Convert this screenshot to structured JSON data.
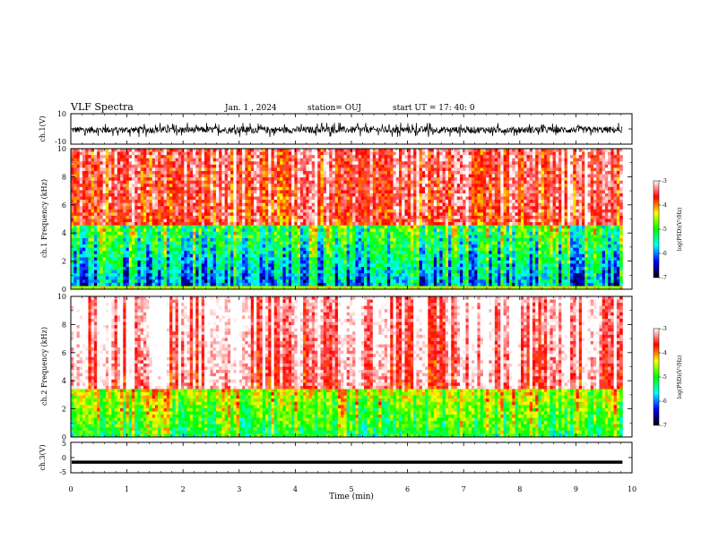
{
  "header": {
    "title": "VLF Spectra",
    "date": "Jan. 1 , 2024",
    "station": "station= OUJ",
    "start": "start  UT =   17: 40: 0"
  },
  "chart_data": [
    {
      "type": "line",
      "panel": "ch1-waveform",
      "ylabel": "ch.1(V)",
      "ylim": [
        -10,
        10
      ],
      "yticks": [
        "10",
        "-10"
      ],
      "xlim": [
        0,
        10
      ],
      "trace_range_approx": [
        -4,
        4
      ],
      "trace_extent_min": 9.83,
      "color": "#000000"
    },
    {
      "type": "heatmap",
      "panel": "ch1-spectrogram",
      "ylabel": "ch.1 Frequency (kHz)",
      "ylim": [
        0,
        10
      ],
      "yticks": [
        "0",
        "2",
        "4",
        "6",
        "8",
        "10"
      ],
      "xlim": [
        0,
        10
      ],
      "x_extent_min": 9.83,
      "colorbar": {
        "label": "log(PSD)(V²/Hz)",
        "range": [
          -7,
          -3
        ],
        "ticks": [
          "-3",
          "-4",
          "-5",
          "-6",
          "-7"
        ]
      }
    },
    {
      "type": "heatmap",
      "panel": "ch2-spectrogram",
      "ylabel": "ch.2 Frequency (kHz)",
      "ylim": [
        0,
        10
      ],
      "yticks": [
        "0",
        "2",
        "4",
        "6",
        "8",
        "10"
      ],
      "xlim": [
        0,
        10
      ],
      "x_extent_min": 9.83,
      "colorbar": {
        "label": "log(PSD)(V²/Hz)",
        "range": [
          -7,
          -3
        ],
        "ticks": [
          "-3",
          "-4",
          "-5",
          "-6",
          "-7"
        ]
      }
    },
    {
      "type": "line",
      "panel": "ch3-waveform",
      "ylabel": "ch.3(V)",
      "ylim": [
        -5,
        5
      ],
      "yticks": [
        "5",
        "0",
        "-5"
      ],
      "xlim": [
        0,
        10
      ],
      "x": [
        0,
        9.83
      ],
      "y": [
        -1.5,
        -1.5
      ],
      "xlabel": "Time (min)",
      "xticks": [
        "0",
        "1",
        "2",
        "3",
        "4",
        "5",
        "6",
        "7",
        "8",
        "9",
        "10"
      ]
    }
  ],
  "colormap": [
    "#000000",
    "#0000ff",
    "#00ffff",
    "#00ff00",
    "#ffff00",
    "#ff0000",
    "#ffffff"
  ]
}
